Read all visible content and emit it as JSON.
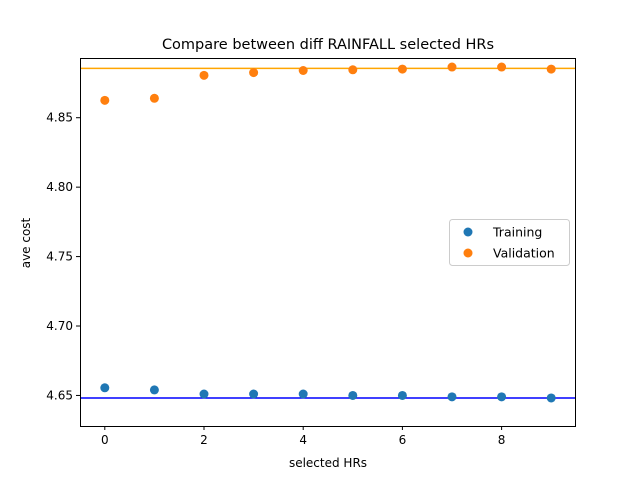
{
  "chart_data": {
    "type": "scatter",
    "title": "Compare between diff RAINFALL selected HRs",
    "xlabel": "selected HRs",
    "ylabel": "ave cost",
    "xlim": [
      -0.5,
      9.5
    ],
    "ylim": [
      4.628,
      4.893
    ],
    "xticks": [
      0,
      2,
      4,
      6,
      8
    ],
    "xtick_labels": [
      "0",
      "2",
      "4",
      "6",
      "8"
    ],
    "yticks": [
      4.65,
      4.7,
      4.75,
      4.8,
      4.85
    ],
    "ytick_labels": [
      "4.65",
      "4.70",
      "4.75",
      "4.80",
      "4.85"
    ],
    "grid": false,
    "legend_position": "center-right",
    "x": [
      0,
      1,
      2,
      3,
      4,
      5,
      6,
      7,
      8,
      9
    ],
    "series": [
      {
        "name": "Training",
        "color": "#1f77b4",
        "values": [
          4.6555,
          4.654,
          4.651,
          4.651,
          4.651,
          4.65,
          4.65,
          4.649,
          4.649,
          4.6482
        ]
      },
      {
        "name": "Validation",
        "color": "#ff7f0e",
        "values": [
          4.8625,
          4.864,
          4.8805,
          4.8825,
          4.884,
          4.8845,
          4.885,
          4.8865,
          4.8865,
          4.885
        ]
      }
    ],
    "hlines": [
      {
        "value": 4.8855,
        "color": "#ffa500"
      },
      {
        "value": 4.6482,
        "color": "#0000ff"
      }
    ]
  }
}
